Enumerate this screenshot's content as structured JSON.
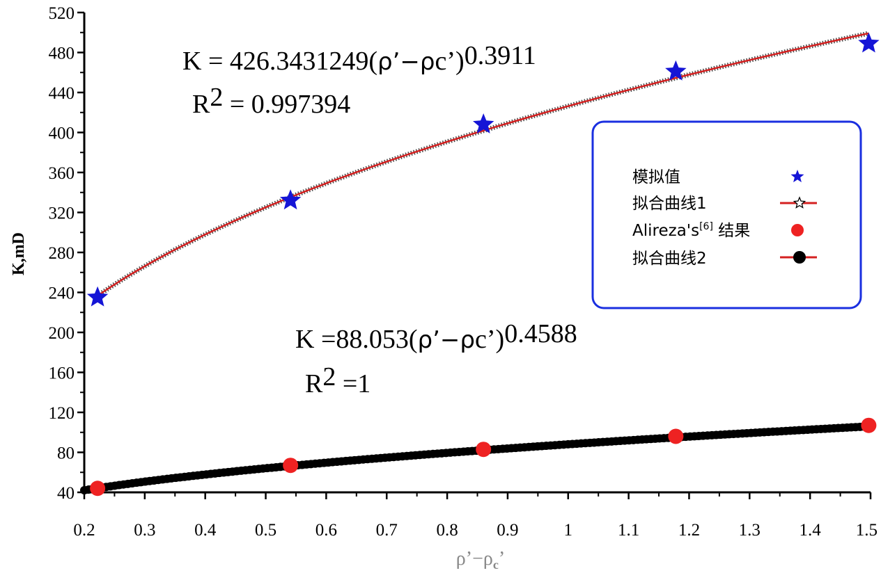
{
  "chart_data": {
    "type": "scatter",
    "xlabel_parts": {
      "main": "ρ’−ρ",
      "sub": "c",
      "tail": "’"
    },
    "ylabel": "K,mD",
    "xlim": [
      0.2,
      1.5
    ],
    "ylim": [
      40,
      520
    ],
    "x_ticks": [
      "0.2",
      "0.3",
      "0.4",
      "0.5",
      "0.6",
      "0.7",
      "0.8",
      "0.9",
      "1",
      "1.1",
      "1.2",
      "1.3",
      "1.4",
      "1.5"
    ],
    "y_ticks": [
      "40",
      "80",
      "120",
      "160",
      "200",
      "240",
      "280",
      "320",
      "360",
      "400",
      "440",
      "480",
      "520"
    ],
    "series": [
      {
        "name": "模拟值",
        "kind": "points",
        "marker": "star",
        "color": "#1515d6",
        "x": [
          0.222,
          0.541,
          0.86,
          1.178,
          1.497
        ],
        "y": [
          235,
          332,
          408,
          461,
          489
        ]
      },
      {
        "name": "拟合曲线1",
        "kind": "curve",
        "marker": "star-open",
        "color": "#d42020",
        "coef": 426.3431249,
        "exp": 0.3911,
        "xrange": [
          0.222,
          1.497
        ]
      },
      {
        "name": "Alireza's",
        "name_sup": "[6]",
        "name_tail": " 结果",
        "kind": "points",
        "marker": "circle",
        "color": "#ee2222",
        "x": [
          0.222,
          0.541,
          0.86,
          1.178,
          1.497
        ],
        "y": [
          44,
          67,
          83,
          96,
          107
        ]
      },
      {
        "name": "拟合曲线2",
        "kind": "curve",
        "marker": "circle-dense",
        "color": "#000000",
        "coef": 88.053,
        "exp": 0.4588,
        "xrange": [
          0.2,
          1.497
        ]
      }
    ],
    "annotations": {
      "eq1": {
        "prefix": "K = 426.3431249(",
        "mid": "ρ’−ρ",
        "sub": "c",
        "suffix": "’)",
        "exp": "0.3911"
      },
      "r1": {
        "r": "R",
        "sup": "2",
        "rest": " = 0.997394"
      },
      "eq2": {
        "prefix": "K =88.053(",
        "mid": "ρ’−ρ",
        "sub": "c",
        "suffix": "’)",
        "exp": "0.4588"
      },
      "r2": {
        "r": "R",
        "sup": "2",
        "rest": " =1"
      }
    },
    "legend": {
      "placement": "right",
      "border_color": "#1a2fe0"
    }
  }
}
